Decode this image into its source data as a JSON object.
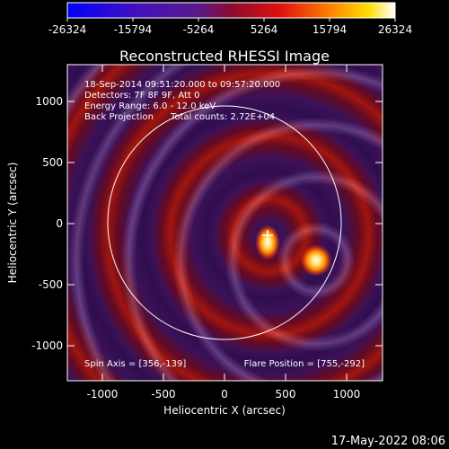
{
  "colorbar": {
    "labels": [
      "-26324",
      "-15794",
      "-5264",
      "5264",
      "15794",
      "26324"
    ],
    "range": [
      -26324,
      26324
    ],
    "colormap": "blue-purple-red-yellow-white"
  },
  "plot": {
    "title": "Reconstructed RHESSI Image",
    "info_lines": [
      "18-Sep-2014 09:51:20.000 to 09:57:20.000",
      "Detectors: 7F 8F 9F, Att 0",
      "Energy Range: 6.0 - 12.0 keV",
      "Back Projection      Total counts: 2.72E+04"
    ],
    "spin_axis": "Spin Axis = [356,-139]",
    "flare_position": "Flare Position = [755,-292]",
    "xlabel": "Heliocentric X (arcsec)",
    "ylabel": "Heliocentric Y (arcsec)",
    "x_ticks": [
      "-1000",
      "-500",
      "0",
      "500",
      "1000"
    ],
    "y_ticks": [
      "1000",
      "500",
      "0",
      "-500",
      "-1000"
    ],
    "x_range": [
      -1280,
      1300
    ],
    "y_range": [
      -1300,
      1280
    ],
    "solar_limb_radius": 950,
    "spin_axis_xy": [
      356,
      -139
    ],
    "flare_xy": [
      755,
      -292
    ]
  },
  "timestamp": "17-May-2022 08:06",
  "colors": {
    "background": "#000000",
    "limb": "#ffffff",
    "deep_purple": "#3a1060",
    "red": "#b01818",
    "yellow": "#ffe060"
  }
}
